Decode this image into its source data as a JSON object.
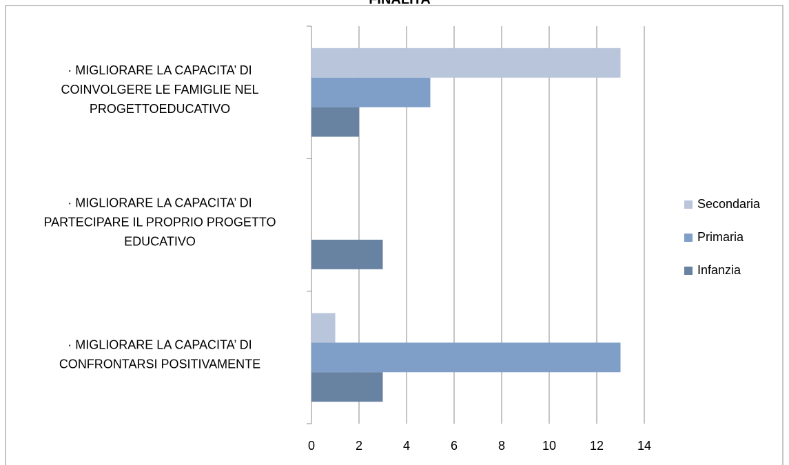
{
  "chart_data": {
    "type": "hbar",
    "title": "FINALITA",
    "categories": [
      [
        "·        MIGLIORARE LA CAPACITA’ DI",
        "COINVOLGERE LE FAMIGLIE NEL",
        "PROGETTOEDUCATIVO"
      ],
      [
        "·        MIGLIORARE LA CAPACITA’ DI",
        "PARTECIPARE IL PROPRIO PROGETTO",
        "EDUCATIVO"
      ],
      [
        "·        MIGLIORARE LA CAPACITA’ DI",
        "CONFRONTARSI POSITIVAMENTE"
      ]
    ],
    "series": [
      {
        "name": "Secondaria",
        "color": "#b9c5da",
        "values": [
          13,
          0,
          1
        ]
      },
      {
        "name": "Primaria",
        "color": "#7f9fc8",
        "values": [
          5,
          0,
          13
        ]
      },
      {
        "name": "Infanzia",
        "color": "#6882a2",
        "values": [
          2,
          3,
          3
        ]
      }
    ],
    "xlim": [
      0,
      14
    ],
    "xticks": [
      0,
      2,
      4,
      6,
      8,
      10,
      12,
      14
    ],
    "grid": true,
    "legend": "right"
  }
}
